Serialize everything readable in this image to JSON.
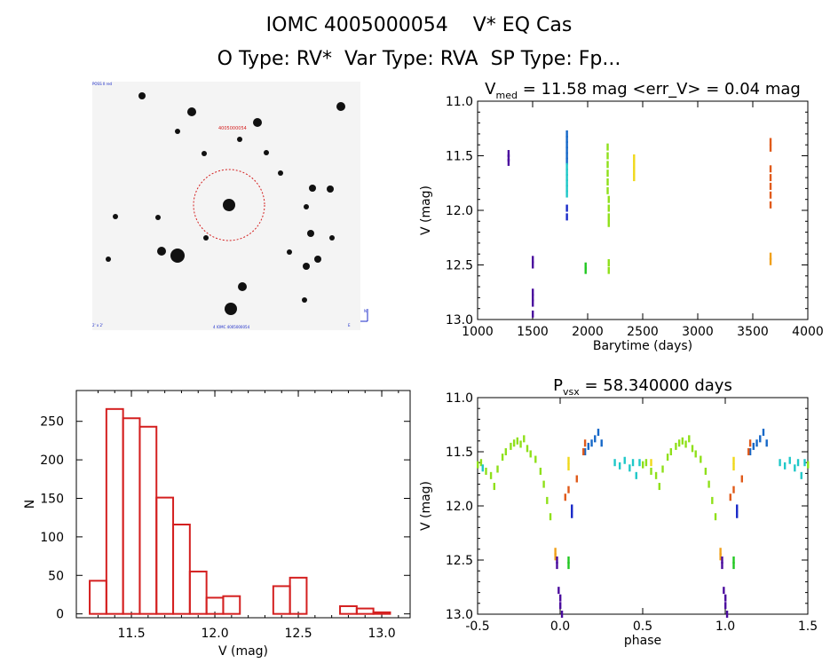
{
  "title_line1": "IOMC 4005000054    V* EQ Cas",
  "title_line2": "O Type: RV*  Var Type: RVA  SP Type: Fp...",
  "sky_image": {
    "target_label": "4005000054",
    "corner_labels": [
      "POSS II red",
      "N",
      "E",
      "2' x 2'",
      "4 IOMC 4005000054"
    ]
  },
  "chart_data": [
    {
      "type": "scatter",
      "name": "light-curve",
      "title": "V_med = 11.58 mag <err_V> = 0.04 mag",
      "title_main": "V",
      "title_sub": "med",
      "title_rest": " = 11.58 mag <err_V> = 0.04 mag",
      "xlabel": "Barytime (days)",
      "ylabel": "V (mag)",
      "xlim": [
        1000,
        4000
      ],
      "ylim": [
        13.0,
        11.0
      ],
      "xticks": [
        1000,
        1500,
        2000,
        2500,
        3000,
        3500,
        4000
      ],
      "xtick_labels": [
        "1000",
        "1500",
        "2000",
        "2500",
        "3000",
        "3500",
        "4000"
      ],
      "yticks": [
        11.0,
        11.5,
        12.0,
        12.5,
        13.0
      ],
      "ytick_labels": [
        "11.0",
        "11.5",
        "12.0",
        "12.5",
        "13.0"
      ],
      "series": [
        {
          "name": "s1",
          "color": "#4b0c9e",
          "points": [
            [
              1280,
              11.48
            ],
            [
              1280,
              11.52
            ],
            [
              1280,
              11.56
            ]
          ]
        },
        {
          "name": "s2",
          "color": "#4b0c9e",
          "points": [
            [
              1500,
              12.45
            ],
            [
              1500,
              12.5
            ],
            [
              1500,
              12.75
            ],
            [
              1500,
              12.8
            ],
            [
              1500,
              12.85
            ],
            [
              1500,
              12.95
            ]
          ]
        },
        {
          "name": "s3",
          "color": "#1668c8",
          "points": [
            [
              1810,
              11.3
            ],
            [
              1810,
              11.35
            ],
            [
              1810,
              11.4
            ],
            [
              1810,
              11.45
            ],
            [
              1810,
              11.5
            ],
            [
              1810,
              11.55
            ]
          ]
        },
        {
          "name": "s4",
          "color": "#1fc8c8",
          "points": [
            [
              1810,
              11.6
            ],
            [
              1810,
              11.65
            ],
            [
              1810,
              11.7
            ],
            [
              1810,
              11.75
            ],
            [
              1810,
              11.8
            ],
            [
              1810,
              11.85
            ]
          ]
        },
        {
          "name": "s5",
          "color": "#1a2ac8",
          "points": [
            [
              1810,
              11.98
            ],
            [
              1810,
              12.06
            ]
          ]
        },
        {
          "name": "s6",
          "color": "#22c822",
          "points": [
            [
              1980,
              12.51
            ],
            [
              1980,
              12.55
            ]
          ]
        },
        {
          "name": "s7",
          "color": "#8fe01a",
          "points": [
            [
              2180,
              11.42
            ],
            [
              2180,
              11.5
            ],
            [
              2180,
              11.58
            ],
            [
              2180,
              11.66
            ],
            [
              2180,
              11.74
            ],
            [
              2180,
              11.82
            ],
            [
              2190,
              11.9
            ],
            [
              2190,
              11.98
            ],
            [
              2190,
              12.06
            ],
            [
              2190,
              12.12
            ],
            [
              2190,
              12.48
            ],
            [
              2190,
              12.55
            ]
          ]
        },
        {
          "name": "s8",
          "color": "#f0d81a",
          "points": [
            [
              2420,
              11.52
            ],
            [
              2420,
              11.58
            ],
            [
              2420,
              11.64
            ],
            [
              2420,
              11.7
            ]
          ]
        },
        {
          "name": "s9",
          "color": "#e05a1a",
          "points": [
            [
              3660,
              11.37
            ],
            [
              3660,
              11.43
            ],
            [
              3660,
              11.62
            ],
            [
              3660,
              11.7
            ],
            [
              3660,
              11.78
            ],
            [
              3660,
              11.86
            ],
            [
              3660,
              11.95
            ]
          ]
        },
        {
          "name": "s10",
          "color": "#f0a01a",
          "points": [
            [
              3660,
              12.42
            ],
            [
              3660,
              12.47
            ]
          ]
        }
      ]
    },
    {
      "type": "bar",
      "name": "histogram",
      "title": "",
      "xlabel": "V (mag)",
      "ylabel": "N",
      "xlim": [
        11.17,
        13.17
      ],
      "ylim": [
        -5,
        290
      ],
      "xticks": [
        11.5,
        12.0,
        12.5,
        13.0
      ],
      "xtick_labels": [
        "11.5",
        "12.0",
        "12.5",
        "13.0"
      ],
      "yticks": [
        0,
        50,
        100,
        150,
        200,
        250
      ],
      "ytick_labels": [
        "0",
        "50",
        "100",
        "150",
        "200",
        "250"
      ],
      "bin_width": 0.1,
      "bin_left_edges": [
        11.25,
        11.35,
        11.45,
        11.55,
        11.65,
        11.75,
        11.85,
        11.95,
        12.05,
        12.15,
        12.25,
        12.35,
        12.45,
        12.55,
        12.65,
        12.75,
        12.85,
        12.95,
        13.05
      ],
      "values": [
        43,
        266,
        254,
        243,
        151,
        116,
        55,
        21,
        23,
        0,
        0,
        36,
        47,
        0,
        0,
        10,
        7,
        2,
        0
      ],
      "color": "#d42020"
    },
    {
      "type": "scatter",
      "name": "phased-light-curve",
      "title": "P_vsx = 58.340000 days",
      "title_main": "P",
      "title_sub": "vsx",
      "title_rest": " = 58.340000 days",
      "xlabel": "phase",
      "ylabel": "V (mag)",
      "xlim": [
        -0.5,
        1.5
      ],
      "ylim": [
        13.0,
        11.0
      ],
      "xticks": [
        -0.5,
        0.0,
        0.5,
        1.0,
        1.5
      ],
      "xtick_labels": [
        "-0.5",
        "0.0",
        "0.5",
        "1.0",
        "1.5"
      ],
      "yticks": [
        11.0,
        11.5,
        12.0,
        12.5,
        13.0
      ],
      "ytick_labels": [
        "11.0",
        "11.5",
        "12.0",
        "12.5",
        "13.0"
      ],
      "period_days": 58.34,
      "series": [
        {
          "name": "p-green",
          "color": "#8fe01a",
          "points": [
            [
              -0.5,
              11.62
            ],
            [
              -0.48,
              11.6
            ],
            [
              -0.45,
              11.68
            ],
            [
              -0.42,
              11.72
            ],
            [
              -0.4,
              11.82
            ],
            [
              -0.38,
              11.66
            ],
            [
              -0.35,
              11.55
            ],
            [
              -0.33,
              11.5
            ],
            [
              -0.3,
              11.45
            ],
            [
              -0.28,
              11.42
            ],
            [
              -0.26,
              11.4
            ],
            [
              -0.24,
              11.43
            ],
            [
              -0.22,
              11.38
            ],
            [
              -0.2,
              11.47
            ],
            [
              -0.18,
              11.52
            ],
            [
              -0.15,
              11.57
            ],
            [
              -0.12,
              11.68
            ],
            [
              -0.1,
              11.8
            ],
            [
              -0.08,
              11.95
            ],
            [
              -0.06,
              12.1
            ],
            [
              0.5,
              11.62
            ],
            [
              0.52,
              11.6
            ],
            [
              0.55,
              11.68
            ],
            [
              0.58,
              11.72
            ],
            [
              0.6,
              11.82
            ],
            [
              0.62,
              11.66
            ],
            [
              0.65,
              11.55
            ],
            [
              0.67,
              11.5
            ],
            [
              0.7,
              11.45
            ],
            [
              0.72,
              11.42
            ],
            [
              0.74,
              11.4
            ],
            [
              0.76,
              11.43
            ],
            [
              0.78,
              11.38
            ],
            [
              0.8,
              11.47
            ],
            [
              0.82,
              11.52
            ],
            [
              0.85,
              11.57
            ],
            [
              0.88,
              11.68
            ],
            [
              0.9,
              11.8
            ],
            [
              0.92,
              11.95
            ],
            [
              0.94,
              12.1
            ],
            [
              1.5,
              11.62
            ]
          ]
        },
        {
          "name": "p-blue",
          "color": "#1668c8",
          "points": [
            [
              0.15,
              11.5
            ],
            [
              0.17,
              11.45
            ],
            [
              0.19,
              11.42
            ],
            [
              0.21,
              11.38
            ],
            [
              0.23,
              11.32
            ],
            [
              0.25,
              11.42
            ],
            [
              1.15,
              11.5
            ],
            [
              1.17,
              11.45
            ],
            [
              1.19,
              11.42
            ],
            [
              1.21,
              11.38
            ],
            [
              1.23,
              11.32
            ],
            [
              1.25,
              11.42
            ]
          ]
        },
        {
          "name": "p-cyan",
          "color": "#1fc8c8",
          "points": [
            [
              -0.47,
              11.65
            ],
            [
              0.33,
              11.6
            ],
            [
              0.36,
              11.63
            ],
            [
              0.39,
              11.58
            ],
            [
              0.42,
              11.65
            ],
            [
              0.44,
              11.6
            ],
            [
              0.46,
              11.72
            ],
            [
              0.48,
              11.6
            ],
            [
              1.33,
              11.6
            ],
            [
              1.36,
              11.63
            ],
            [
              1.39,
              11.58
            ],
            [
              1.42,
              11.65
            ],
            [
              1.44,
              11.6
            ],
            [
              1.46,
              11.72
            ],
            [
              1.48,
              11.6
            ]
          ]
        },
        {
          "name": "p-navy",
          "color": "#1a2ac8",
          "points": [
            [
              0.07,
              12.02
            ],
            [
              0.07,
              12.08
            ],
            [
              1.07,
              12.02
            ],
            [
              1.07,
              12.08
            ]
          ]
        },
        {
          "name": "p-greenlo",
          "color": "#22c822",
          "points": [
            [
              0.05,
              12.5
            ],
            [
              0.05,
              12.55
            ],
            [
              1.05,
              12.5
            ],
            [
              1.05,
              12.55
            ]
          ]
        },
        {
          "name": "p-yellow",
          "color": "#f0d81a",
          "points": [
            [
              0.05,
              11.58
            ],
            [
              0.05,
              11.64
            ],
            [
              0.55,
              11.6
            ],
            [
              1.05,
              11.58
            ],
            [
              1.05,
              11.64
            ]
          ]
        },
        {
          "name": "p-red",
          "color": "#e05a1a",
          "points": [
            [
              0.03,
              11.92
            ],
            [
              0.05,
              11.85
            ],
            [
              0.1,
              11.75
            ],
            [
              0.14,
              11.5
            ],
            [
              0.15,
              11.42
            ],
            [
              1.03,
              11.92
            ],
            [
              1.05,
              11.85
            ],
            [
              1.1,
              11.75
            ],
            [
              1.14,
              11.5
            ],
            [
              1.15,
              11.42
            ]
          ]
        },
        {
          "name": "p-orange",
          "color": "#f0a01a",
          "points": [
            [
              -0.03,
              12.42
            ],
            [
              -0.03,
              12.47
            ],
            [
              0.97,
              12.42
            ],
            [
              0.97,
              12.47
            ]
          ]
        },
        {
          "name": "p-violet",
          "color": "#4b0c9e",
          "points": [
            [
              -0.02,
              12.5
            ],
            [
              -0.02,
              12.55
            ],
            [
              -0.01,
              12.78
            ],
            [
              0.0,
              12.85
            ],
            [
              0.0,
              12.92
            ],
            [
              0.01,
              13.0
            ],
            [
              0.98,
              12.5
            ],
            [
              0.98,
              12.55
            ],
            [
              0.99,
              12.78
            ],
            [
              1.0,
              12.85
            ],
            [
              1.0,
              12.92
            ],
            [
              1.01,
              13.0
            ]
          ]
        }
      ]
    }
  ]
}
